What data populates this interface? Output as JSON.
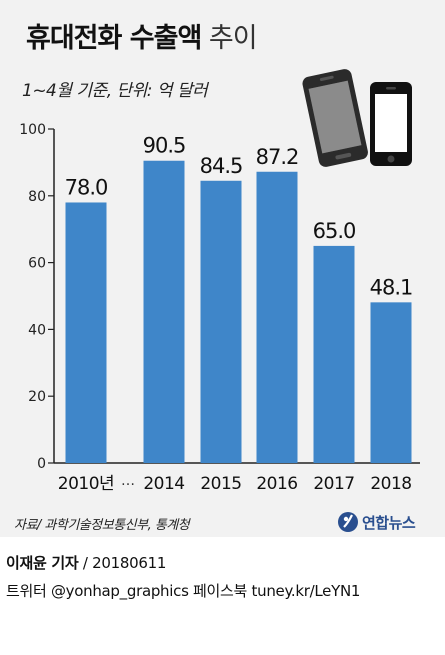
{
  "header": {
    "title_bold": "휴대전화 수출액",
    "title_light": "추이",
    "subtitle": "1~4월 기준, 단위: 억 달러"
  },
  "chart_data": {
    "type": "bar",
    "categories": [
      "2010년",
      "2014",
      "2015",
      "2016",
      "2017",
      "2018"
    ],
    "axis_break_label": "…",
    "values": [
      78.0,
      90.5,
      84.5,
      87.2,
      65.0,
      48.1
    ],
    "value_labels": [
      "78.0",
      "90.5",
      "84.5",
      "87.2",
      "65.0",
      "48.1"
    ],
    "ylim": [
      0,
      100
    ],
    "yticks": [
      0,
      20,
      40,
      60,
      80,
      100
    ],
    "grid": false,
    "bar_color": "#3f86c9"
  },
  "source": "자료/ 과학기술정보통신부, 통계청",
  "brand": {
    "name": "연합뉴스",
    "color": "#2a4f8f"
  },
  "credits": {
    "reporter": "이재윤 기자",
    "date": "/ 20180611",
    "social": "트위터 @yonhap_graphics  페이스북 tuney.kr/LeYN1"
  }
}
